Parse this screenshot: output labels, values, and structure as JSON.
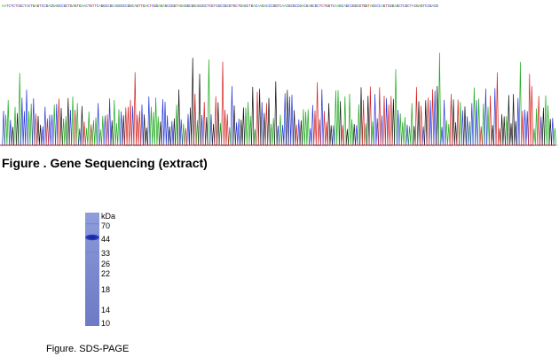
{
  "sequence_figure": {
    "caption": "Figure . Gene Sequencing (extract)",
    "bases": "AATCTCTCGCTACTGAGTCCGACGAGCCGCTGAGTGAACTGTTCAGGCCGCAGCGCCGGCAGTTGACTCGGAGAGCCGGTAGAGGCGGAGCGCTCGTCGCCGCGTGCTGAGCTGACAAGACCCGGTCAACGCGCCGACGAGCGCTCTGGTCAAGCAGCCGGCGTGGTAGCCCAGTCGGAGCTCGCTACGAGTCCGACG",
    "base_colors": {
      "A": "#1aa81a",
      "C": "#2234d8",
      "G": "#111111",
      "T": "#d42020"
    }
  },
  "gel_figure": {
    "caption": "Figure. SDS-PAGE",
    "unit_label": "kDa",
    "markers": [
      "70",
      "44",
      "33",
      "26",
      "22",
      "18",
      "14",
      "10"
    ],
    "band_color": "#1c2fb0",
    "lane_color": "#7d8bd0"
  }
}
